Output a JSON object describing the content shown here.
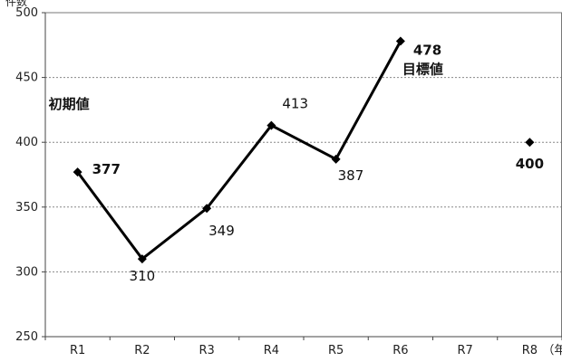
{
  "chart_data": {
    "type": "line",
    "ylabel": "件数",
    "xunit": "（年度）",
    "categories": [
      "R1",
      "R2",
      "R3",
      "R4",
      "R5",
      "R6",
      "R7",
      "R8"
    ],
    "ylim": [
      250,
      500
    ],
    "yticks": [
      250,
      300,
      350,
      400,
      450,
      500
    ],
    "grid": true,
    "series": [
      {
        "values": [
          377,
          310,
          349,
          413,
          387,
          478,
          null,
          null
        ],
        "labels": [
          "377",
          "310",
          "349",
          "413",
          "387",
          "478",
          "",
          ""
        ],
        "color": "#000000"
      },
      {
        "values": [
          null,
          null,
          null,
          null,
          null,
          null,
          null,
          400
        ],
        "labels": [
          "",
          "",
          "",
          "",
          "",
          "",
          "",
          "400"
        ],
        "color": "#000000"
      }
    ],
    "annotations": [
      {
        "text": "初期値",
        "category": "R1"
      },
      {
        "text": "目標値",
        "category": "R6"
      }
    ]
  }
}
